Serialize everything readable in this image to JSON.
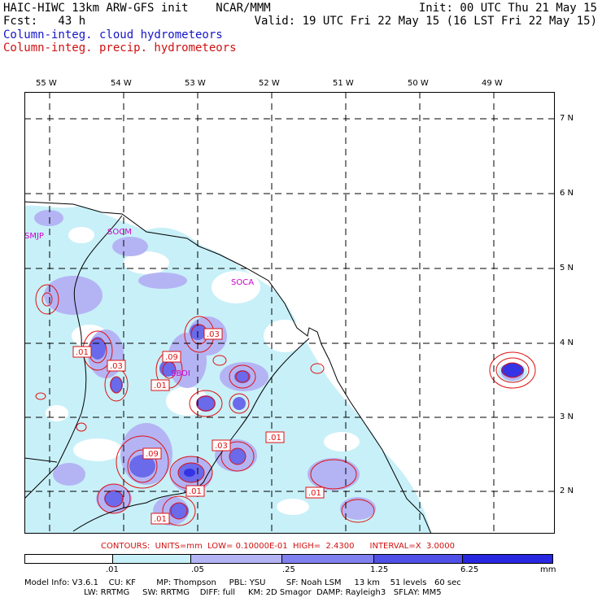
{
  "header": {
    "line1_left": "HAIC-HIWC 13km ARW-GFS init    NCAR/MMM",
    "line1_right": "Init: 00 UTC Thu 21 May 15",
    "line2_left": "Fcst:   43 h",
    "line2_right": "Valid: 19 UTC Fri 22 May 15 (16 LST Fri 22 May 15)",
    "legend_cloud": "Column-integ. cloud hydrometeors",
    "legend_precip": "Column-integ. precip. hydrometeors"
  },
  "map": {
    "lon_labels": [
      "55 W",
      "54 W",
      "53 W",
      "52 W",
      "51 W",
      "50 W",
      "49 W"
    ],
    "lat_labels": [
      "7 N",
      "6 N",
      "5 N",
      "4 N",
      "3 N",
      "2 N"
    ],
    "station_labels": [
      "SMJP",
      "SOCM",
      "SOCA",
      "SBOI"
    ],
    "contour_labels": [
      ".01",
      ".03",
      ".03",
      ".09",
      ".01",
      ".03",
      ".09",
      ".01",
      ".01",
      ".01",
      ".01",
      ".01"
    ]
  },
  "contour_info": "CONTOURS:  UNITS=mm  LOW= 0.10000E-01  HIGH=  2.4300      INTERVAL=X  3.0000",
  "colorbar": {
    "colors": [
      "#ffffff",
      "#c8f0f8",
      "#b4b4f4",
      "#8080ee",
      "#5050e8",
      "#2828e0",
      "#0a0ae8"
    ],
    "labels": [
      ".01",
      ".05",
      ".25",
      "1.25",
      "6.25"
    ],
    "units": "mm"
  },
  "model_info": {
    "line1": "Model Info: V3.6.1    CU: KF        MP: Thompson     PBL: YSU        SF: Noah LSM     13 km    51 levels   60 sec",
    "line2": "                       LW: RRTMG     SW: RRTMG    DIFF: full     KM: 2D Smagor  DAMP: Rayleigh3   SFLAY: MM5"
  }
}
